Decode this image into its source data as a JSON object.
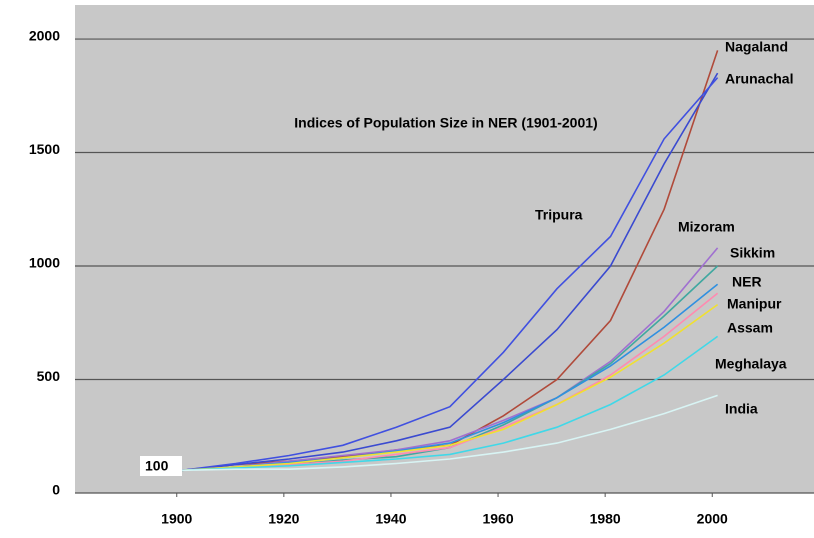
{
  "chart_data": {
    "type": "line",
    "title": "Indices of Population Size in NER (1901-2001)",
    "start_label": "100",
    "x": [
      1901,
      1911,
      1921,
      1931,
      1941,
      1951,
      1961,
      1971,
      1981,
      1991,
      2001
    ],
    "xlim": [
      1881,
      2019
    ],
    "xticks": [
      1900,
      1920,
      1940,
      1960,
      1980,
      2000
    ],
    "ylim": [
      0,
      2150
    ],
    "yticks": [
      0,
      500,
      1000,
      1500,
      2000
    ],
    "grid": true,
    "series": [
      {
        "name": "Nagaland",
        "color": "#b04a3a",
        "values": [
          100,
          125,
          140,
          160,
          190,
          210,
          340,
          500,
          760,
          1250,
          1950
        ]
      },
      {
        "name": "Arunachal",
        "color": "#3a4ad0",
        "values": [
          100,
          125,
          150,
          180,
          230,
          290,
          500,
          720,
          1000,
          1450,
          1850
        ]
      },
      {
        "name": "Tripura",
        "color": "#4050e0",
        "values": [
          100,
          130,
          165,
          210,
          290,
          380,
          620,
          900,
          1130,
          1560,
          1830
        ]
      },
      {
        "name": "Mizoram",
        "color": "#a070d0",
        "values": [
          100,
          115,
          140,
          165,
          190,
          230,
          320,
          420,
          580,
          800,
          1080
        ]
      },
      {
        "name": "Sikkim",
        "color": "#40a8a0",
        "values": [
          100,
          110,
          125,
          145,
          160,
          200,
          300,
          420,
          570,
          780,
          1000
        ]
      },
      {
        "name": "NER",
        "color": "#3090e0",
        "values": [
          100,
          115,
          135,
          155,
          185,
          220,
          310,
          420,
          560,
          730,
          920
        ]
      },
      {
        "name": "Manipur",
        "color": "#ff8ab0",
        "values": [
          100,
          110,
          125,
          140,
          170,
          200,
          290,
          390,
          520,
          690,
          880
        ]
      },
      {
        "name": "Assam",
        "color": "#f0e030",
        "values": [
          100,
          115,
          130,
          155,
          180,
          210,
          280,
          390,
          510,
          660,
          830
        ]
      },
      {
        "name": "Meghalaya",
        "color": "#40d8e8",
        "values": [
          100,
          110,
          120,
          135,
          150,
          170,
          220,
          290,
          390,
          520,
          690
        ]
      },
      {
        "name": "India",
        "color": "#d8f4f4",
        "values": [
          100,
          105,
          105,
          115,
          130,
          150,
          180,
          220,
          280,
          350,
          430
        ]
      }
    ]
  }
}
